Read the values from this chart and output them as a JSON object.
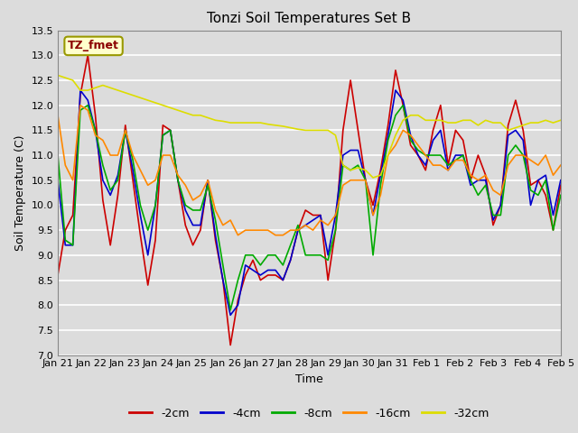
{
  "title": "Tonzi Soil Temperatures Set B",
  "xlabel": "Time",
  "ylabel": "Soil Temperature (C)",
  "annotation": "TZ_fmet",
  "annotation_color": "#8B0000",
  "annotation_bg": "#FFFFCC",
  "annotation_border": "#999900",
  "ylim": [
    7.0,
    13.5
  ],
  "yticks": [
    7.0,
    7.5,
    8.0,
    8.5,
    9.0,
    9.5,
    10.0,
    10.5,
    11.0,
    11.5,
    12.0,
    12.5,
    13.0,
    13.5
  ],
  "xtick_labels": [
    "Jan 21",
    "Jan 22",
    "Jan 23",
    "Jan 24",
    "Jan 25",
    "Jan 26",
    "Jan 27",
    "Jan 28",
    "Jan 29",
    "Jan 30",
    "Jan 31",
    "Feb 1",
    "Feb 2",
    "Feb 3",
    "Feb 4",
    "Feb 5"
  ],
  "bg_color": "#DCDCDC",
  "plot_bg": "#DCDCDC",
  "grid_color": "white",
  "line_colors": {
    "-2cm": "#CC0000",
    "-4cm": "#0000CC",
    "-8cm": "#00AA00",
    "-16cm": "#FF8800",
    "-32cm": "#DDDD00"
  },
  "legend_labels": [
    "-2cm",
    "-4cm",
    "-8cm",
    "-16cm",
    "-32cm"
  ],
  "series": {
    "-2cm": [
      8.6,
      9.5,
      9.8,
      12.2,
      13.0,
      11.8,
      10.1,
      9.2,
      10.2,
      11.6,
      10.5,
      9.4,
      8.4,
      9.3,
      11.6,
      11.5,
      10.5,
      9.6,
      9.2,
      9.5,
      10.5,
      9.3,
      8.5,
      7.2,
      8.1,
      8.6,
      8.9,
      8.5,
      8.6,
      8.6,
      8.5,
      8.9,
      9.5,
      9.9,
      9.8,
      9.8,
      8.5,
      9.5,
      11.5,
      12.5,
      11.5,
      10.5,
      10.0,
      10.7,
      11.6,
      12.7,
      12.0,
      11.2,
      11.0,
      10.7,
      11.5,
      12.0,
      10.8,
      11.5,
      11.3,
      10.5,
      11.0,
      10.6,
      9.6,
      10.0,
      11.6,
      12.1,
      11.5,
      10.4,
      10.5,
      10.2,
      9.5,
      10.4
    ],
    "-4cm": [
      10.5,
      9.2,
      9.2,
      12.3,
      12.1,
      11.5,
      10.5,
      10.2,
      10.6,
      11.5,
      10.7,
      9.8,
      9.0,
      10.0,
      11.4,
      11.5,
      10.5,
      9.9,
      9.6,
      9.6,
      10.5,
      9.4,
      8.5,
      7.8,
      8.0,
      8.8,
      8.7,
      8.6,
      8.7,
      8.7,
      8.5,
      8.9,
      9.5,
      9.6,
      9.7,
      9.8,
      9.0,
      9.8,
      11.0,
      11.1,
      11.1,
      10.5,
      9.8,
      10.6,
      11.4,
      12.3,
      12.1,
      11.4,
      11.0,
      10.8,
      11.3,
      11.5,
      10.7,
      11.0,
      11.0,
      10.4,
      10.5,
      10.5,
      9.7,
      10.0,
      11.4,
      11.5,
      11.3,
      10.0,
      10.5,
      10.6,
      9.8,
      10.5
    ],
    "-8cm": [
      11.0,
      9.3,
      9.2,
      11.9,
      12.0,
      11.5,
      10.8,
      10.3,
      10.5,
      11.5,
      10.9,
      10.0,
      9.5,
      10.0,
      11.4,
      11.5,
      10.5,
      10.0,
      9.9,
      9.9,
      10.4,
      9.7,
      8.8,
      7.9,
      8.5,
      9.0,
      9.0,
      8.8,
      9.0,
      9.0,
      8.8,
      9.2,
      9.6,
      9.0,
      9.0,
      9.0,
      8.9,
      9.5,
      10.8,
      10.7,
      10.8,
      10.5,
      9.0,
      10.4,
      11.3,
      11.8,
      12.0,
      11.3,
      11.1,
      11.0,
      11.0,
      11.0,
      10.8,
      10.9,
      11.0,
      10.5,
      10.2,
      10.4,
      9.8,
      9.8,
      11.0,
      11.2,
      11.0,
      10.3,
      10.2,
      10.5,
      9.5,
      10.2
    ],
    "-16cm": [
      11.8,
      10.8,
      10.5,
      12.0,
      11.9,
      11.4,
      11.3,
      11.0,
      11.0,
      11.5,
      11.0,
      10.7,
      10.4,
      10.5,
      11.0,
      11.0,
      10.6,
      10.4,
      10.1,
      10.2,
      10.5,
      9.9,
      9.6,
      9.7,
      9.4,
      9.5,
      9.5,
      9.5,
      9.5,
      9.4,
      9.4,
      9.5,
      9.5,
      9.6,
      9.5,
      9.7,
      9.6,
      9.8,
      10.4,
      10.5,
      10.5,
      10.5,
      9.8,
      10.2,
      11.0,
      11.2,
      11.5,
      11.4,
      11.2,
      11.0,
      10.8,
      10.8,
      10.7,
      10.9,
      10.9,
      10.6,
      10.5,
      10.6,
      10.3,
      10.2,
      10.8,
      11.0,
      11.0,
      10.9,
      10.8,
      11.0,
      10.6,
      10.8
    ],
    "-32cm": [
      12.6,
      12.55,
      12.5,
      12.3,
      12.3,
      12.35,
      12.4,
      12.35,
      12.3,
      12.25,
      12.2,
      12.15,
      12.1,
      12.05,
      12.0,
      11.95,
      11.9,
      11.85,
      11.8,
      11.8,
      11.75,
      11.7,
      11.68,
      11.65,
      11.65,
      11.65,
      11.65,
      11.65,
      11.62,
      11.6,
      11.58,
      11.55,
      11.52,
      11.5,
      11.5,
      11.5,
      11.5,
      11.4,
      10.8,
      10.7,
      10.75,
      10.7,
      10.55,
      10.6,
      11.0,
      11.4,
      11.7,
      11.8,
      11.8,
      11.7,
      11.7,
      11.7,
      11.65,
      11.65,
      11.7,
      11.7,
      11.6,
      11.7,
      11.65,
      11.65,
      11.5,
      11.55,
      11.6,
      11.65,
      11.65,
      11.7,
      11.65,
      11.7
    ]
  }
}
